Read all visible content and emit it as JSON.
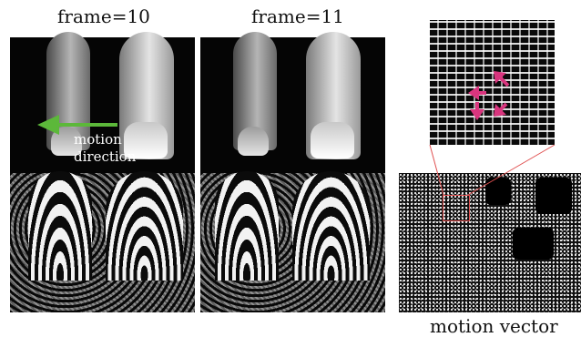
{
  "labels": {
    "frame_a": "frame=10",
    "frame_b": "frame=11",
    "motion_line1": "motion",
    "motion_line2": "direction",
    "caption_vector": "motion vector"
  },
  "colors": {
    "arrow_green": "#5cb83a",
    "arrow_pink": "#d9357e",
    "zoom_box": "#e05050"
  },
  "icons": {
    "motion_arrow": "left-arrow-icon",
    "vector_arrows": [
      "up-left-arrow-icon",
      "left-arrow-icon",
      "down-arrow-icon",
      "down-right-arrow-icon"
    ]
  }
}
